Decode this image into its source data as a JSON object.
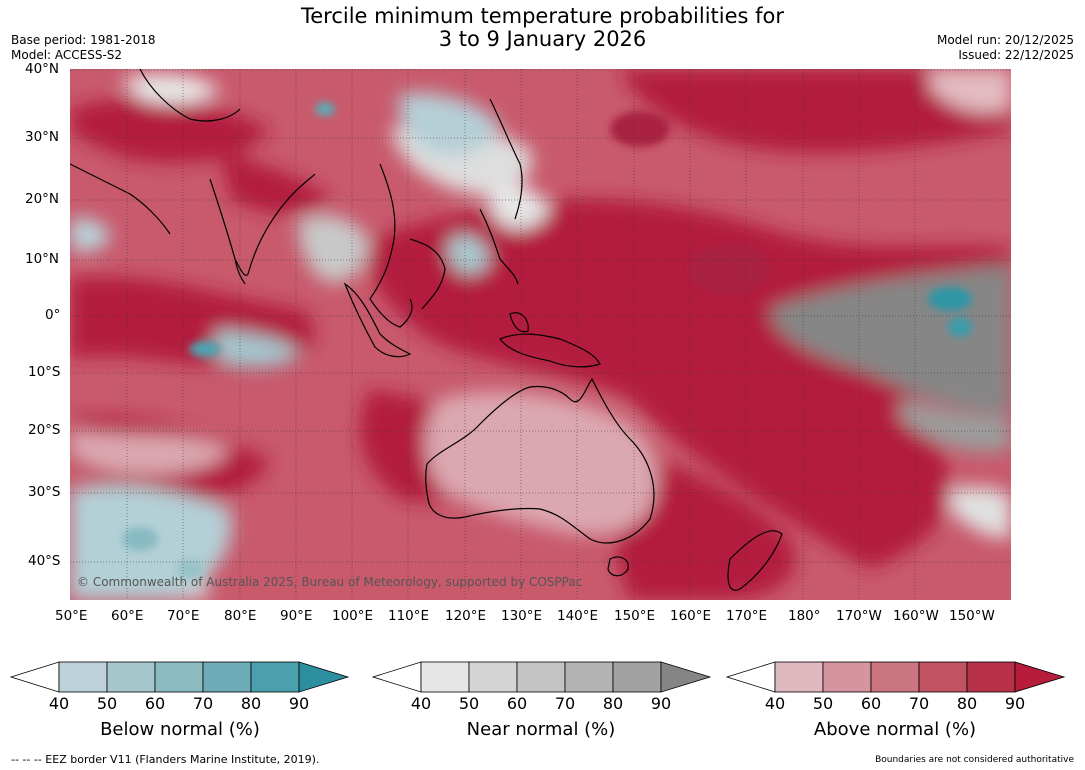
{
  "header": {
    "title_line1": "Tercile minimum temperature probabilities for",
    "title_line2": "3 to 9 January 2026",
    "base_period": "Base period: 1981-2018",
    "model": "Model: ACCESS-S2",
    "model_run": "Model run: 20/12/2025",
    "issued": "Issued: 22/12/2025"
  },
  "map": {
    "lat_labels": [
      "40°N",
      "30°N",
      "20°N",
      "10°N",
      "0°",
      "10°S",
      "20°S",
      "30°S",
      "40°S"
    ],
    "lon_labels": [
      "50°E",
      "60°E",
      "70°E",
      "80°E",
      "90°E",
      "100°E",
      "110°E",
      "120°E",
      "130°E",
      "140°E",
      "150°E",
      "160°E",
      "170°E",
      "180°",
      "170°W",
      "160°W",
      "150°W"
    ],
    "copyright": "© Commonwealth of Australia 2025, Bureau of Meteorology, supported by COSPPac",
    "colors": {
      "above_dominant": "#b31b3c",
      "near_dominant": "#8a8a8a",
      "below_dominant": "#3a9aa8"
    }
  },
  "legends": [
    {
      "label": "Below normal (%)",
      "ticks": [
        "40",
        "50",
        "60",
        "70",
        "80",
        "90"
      ],
      "colors": [
        "#bdd3d9",
        "#a6c8cd",
        "#8cbbc2",
        "#6eadb7",
        "#4ba0ae",
        "#2b8f9f"
      ]
    },
    {
      "label": "Near normal (%)",
      "ticks": [
        "40",
        "50",
        "60",
        "70",
        "80",
        "90"
      ],
      "colors": [
        "#e6e6e6",
        "#d4d4d4",
        "#c4c4c4",
        "#b3b3b3",
        "#a2a2a2",
        "#858585"
      ]
    },
    {
      "label": "Above normal (%)",
      "ticks": [
        "40",
        "50",
        "60",
        "70",
        "80",
        "90"
      ],
      "colors": [
        "#e0b8bf",
        "#d5949e",
        "#ca7580",
        "#c05262",
        "#b73249",
        "#b71c3b"
      ]
    }
  ],
  "footer": {
    "eez_note": "--  --  -- EEZ border V11 (Flanders Marine Institute, 2019).",
    "boundaries_note": "Boundaries are not considered authoritative"
  }
}
